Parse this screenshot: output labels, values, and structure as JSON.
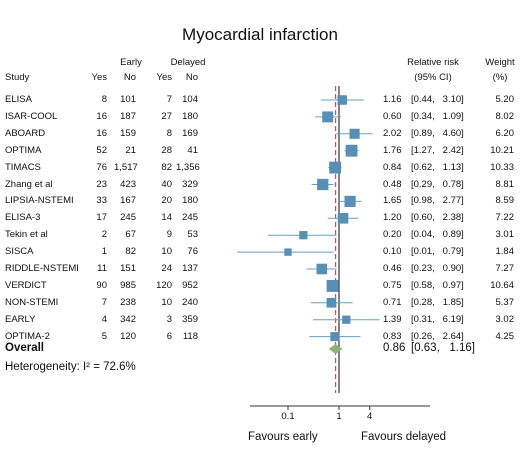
{
  "chart_data": {
    "type": "forest-plot",
    "title": "Myocardial infarction",
    "headers": {
      "study": "Study",
      "early": "Early",
      "delayed": "Delayed",
      "yes": "Yes",
      "no": "No",
      "rr_line1": "Relative risk",
      "rr_line2": "(95% CI)",
      "weight_line1": "Weight",
      "weight_line2": "(%)"
    },
    "studies": [
      {
        "study": "ELISA",
        "early_yes": "8",
        "early_no": "101",
        "delayed_yes": "7",
        "delayed_no": "104",
        "rr": 1.16,
        "lo": 0.44,
        "hi": 3.1,
        "rr_text": "1.16",
        "ci_text": "[0.44,   3.10]",
        "weight": "5.20"
      },
      {
        "study": "ISAR-COOL",
        "early_yes": "16",
        "early_no": "187",
        "delayed_yes": "27",
        "delayed_no": "180",
        "rr": 0.6,
        "lo": 0.34,
        "hi": 1.09,
        "rr_text": "0.60",
        "ci_text": "[0.34,   1.09]",
        "weight": "8.02"
      },
      {
        "study": "ABOARD",
        "early_yes": "16",
        "early_no": "159",
        "delayed_yes": "8",
        "delayed_no": "169",
        "rr": 2.02,
        "lo": 0.89,
        "hi": 4.6,
        "rr_text": "2.02",
        "ci_text": "[0.89,   4.60]",
        "weight": "6.20"
      },
      {
        "study": "OPTIMA",
        "early_yes": "52",
        "early_no": "21",
        "delayed_yes": "28",
        "delayed_no": "41",
        "rr": 1.76,
        "lo": 1.27,
        "hi": 2.42,
        "rr_text": "1.76",
        "ci_text": "[1.27,   2.42]",
        "weight": "10.21"
      },
      {
        "study": "TIMACS",
        "early_yes": "76",
        "early_no": "1,517",
        "delayed_yes": "82",
        "delayed_no": "1,356",
        "rr": 0.84,
        "lo": 0.62,
        "hi": 1.13,
        "rr_text": "0.84",
        "ci_text": "[0.62,   1.13]",
        "weight": "10.33"
      },
      {
        "study": "Zhang et al",
        "early_yes": "23",
        "early_no": "423",
        "delayed_yes": "40",
        "delayed_no": "329",
        "rr": 0.48,
        "lo": 0.29,
        "hi": 0.78,
        "rr_text": "0.48",
        "ci_text": "[0.29,   0.78]",
        "weight": "8.81"
      },
      {
        "study": "LIPSIA-NSTEMI",
        "early_yes": "33",
        "early_no": "167",
        "delayed_yes": "20",
        "delayed_no": "180",
        "rr": 1.65,
        "lo": 0.98,
        "hi": 2.77,
        "rr_text": "1.65",
        "ci_text": "[0.98,   2.77]",
        "weight": "8.59"
      },
      {
        "study": "ELISA-3",
        "early_yes": "17",
        "early_no": "245",
        "delayed_yes": "14",
        "delayed_no": "245",
        "rr": 1.2,
        "lo": 0.6,
        "hi": 2.38,
        "rr_text": "1.20",
        "ci_text": "[0.60,   2.38]",
        "weight": "7.22"
      },
      {
        "study": "Tekin et al",
        "early_yes": "2",
        "early_no": "67",
        "delayed_yes": "9",
        "delayed_no": "53",
        "rr": 0.2,
        "lo": 0.04,
        "hi": 0.89,
        "rr_text": "0.20",
        "ci_text": "[0.04,   0.89]",
        "weight": "3.01"
      },
      {
        "study": "SISCA",
        "early_yes": "1",
        "early_no": "82",
        "delayed_yes": "10",
        "delayed_no": "76",
        "rr": 0.1,
        "lo": 0.01,
        "hi": 0.79,
        "rr_text": "0.10",
        "ci_text": "[0.01,   0.79]",
        "weight": "1.84"
      },
      {
        "study": "RIDDLE-NSTEMI",
        "early_yes": "11",
        "early_no": "151",
        "delayed_yes": "24",
        "delayed_no": "137",
        "rr": 0.46,
        "lo": 0.23,
        "hi": 0.9,
        "rr_text": "0.46",
        "ci_text": "[0.23,   0.90]",
        "weight": "7.27"
      },
      {
        "study": "VERDICT",
        "early_yes": "90",
        "early_no": "985",
        "delayed_yes": "120",
        "delayed_no": "952",
        "rr": 0.75,
        "lo": 0.58,
        "hi": 0.97,
        "rr_text": "0.75",
        "ci_text": "[0.58,   0.97]",
        "weight": "10.64"
      },
      {
        "study": "NON-STEMI",
        "early_yes": "7",
        "early_no": "238",
        "delayed_yes": "10",
        "delayed_no": "240",
        "rr": 0.71,
        "lo": 0.28,
        "hi": 1.85,
        "rr_text": "0.71",
        "ci_text": "[0.28,   1.85]",
        "weight": "5.37"
      },
      {
        "study": "EARLY",
        "early_yes": "4",
        "early_no": "342",
        "delayed_yes": "3",
        "delayed_no": "359",
        "rr": 1.39,
        "lo": 0.31,
        "hi": 6.19,
        "rr_text": "1.39",
        "ci_text": "[0.31,   6.19]",
        "weight": "3.02"
      },
      {
        "study": "OPTIMA-2",
        "early_yes": "5",
        "early_no": "120",
        "delayed_yes": "6",
        "delayed_no": "118",
        "rr": 0.83,
        "lo": 0.26,
        "hi": 2.64,
        "rr_text": "0.83",
        "ci_text": "[0.26,   2.64]",
        "weight": "4.25"
      }
    ],
    "overall": {
      "label": "Overall",
      "rr": 0.86,
      "lo": 0.63,
      "hi": 1.16,
      "rr_text": "0.86",
      "ci_text": "[0.63,   1.16]"
    },
    "heterogeneity": "Heterogeneity: I² = 72.6%",
    "x_axis": {
      "scale": "log",
      "ticks": [
        0.1,
        1,
        4
      ],
      "tick_labels": [
        "0.1",
        "1",
        "4"
      ],
      "range": [
        0.01,
        6.19
      ]
    },
    "favours_left": "Favours early",
    "favours_right": "Favours delayed",
    "colors": {
      "marker": "#5a8fb5",
      "ci_line": "#6a9fc2",
      "diamond": "#8fb07a",
      "null_line": "#333333",
      "overall_line": "#c03030"
    }
  }
}
